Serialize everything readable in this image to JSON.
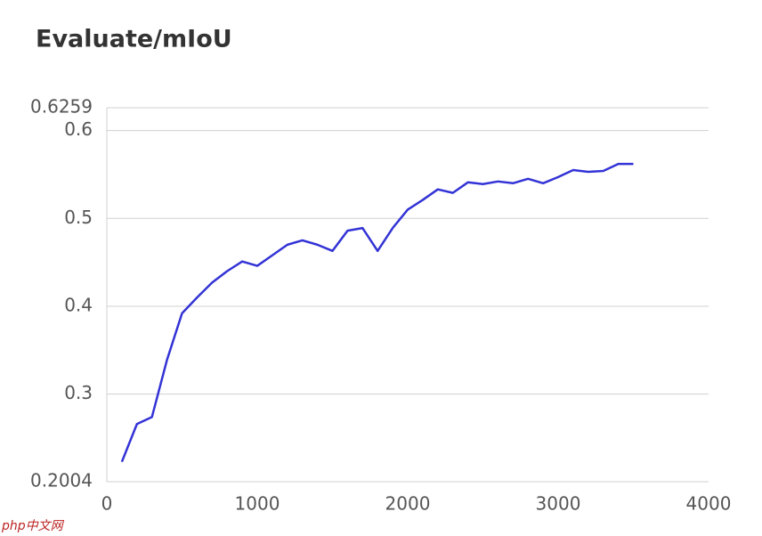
{
  "chart_data": {
    "type": "line",
    "title": "Evaluate/mIoU",
    "x": [
      100,
      200,
      300,
      400,
      500,
      600,
      700,
      800,
      900,
      1000,
      1100,
      1200,
      1300,
      1400,
      1500,
      1600,
      1700,
      1800,
      1900,
      2000,
      2100,
      2200,
      2300,
      2400,
      2500,
      2600,
      2700,
      2800,
      2900,
      3000,
      3100,
      3200,
      3300,
      3400,
      3500
    ],
    "series": [
      {
        "name": "mIoU",
        "color": "#3333d6",
        "values": [
          0.223,
          0.266,
          0.274,
          0.339,
          0.392,
          0.41,
          0.427,
          0.44,
          0.451,
          0.446,
          0.458,
          0.47,
          0.475,
          0.47,
          0.463,
          0.486,
          0.489,
          0.463,
          0.489,
          0.51,
          0.521,
          0.533,
          0.529,
          0.541,
          0.539,
          0.542,
          0.54,
          0.545,
          0.54,
          0.547,
          0.555,
          0.553,
          0.554,
          0.562,
          0.562
        ]
      }
    ],
    "xlim": [
      0,
      4000
    ],
    "xticks": [
      0,
      1000,
      2000,
      3000,
      4000
    ],
    "ylim": [
      0.2004,
      0.6259
    ],
    "yticks": [
      0.2004,
      0.3,
      0.4,
      0.5,
      0.6,
      0.6259
    ],
    "grid": true,
    "legend": false
  },
  "watermark": "php中文网"
}
